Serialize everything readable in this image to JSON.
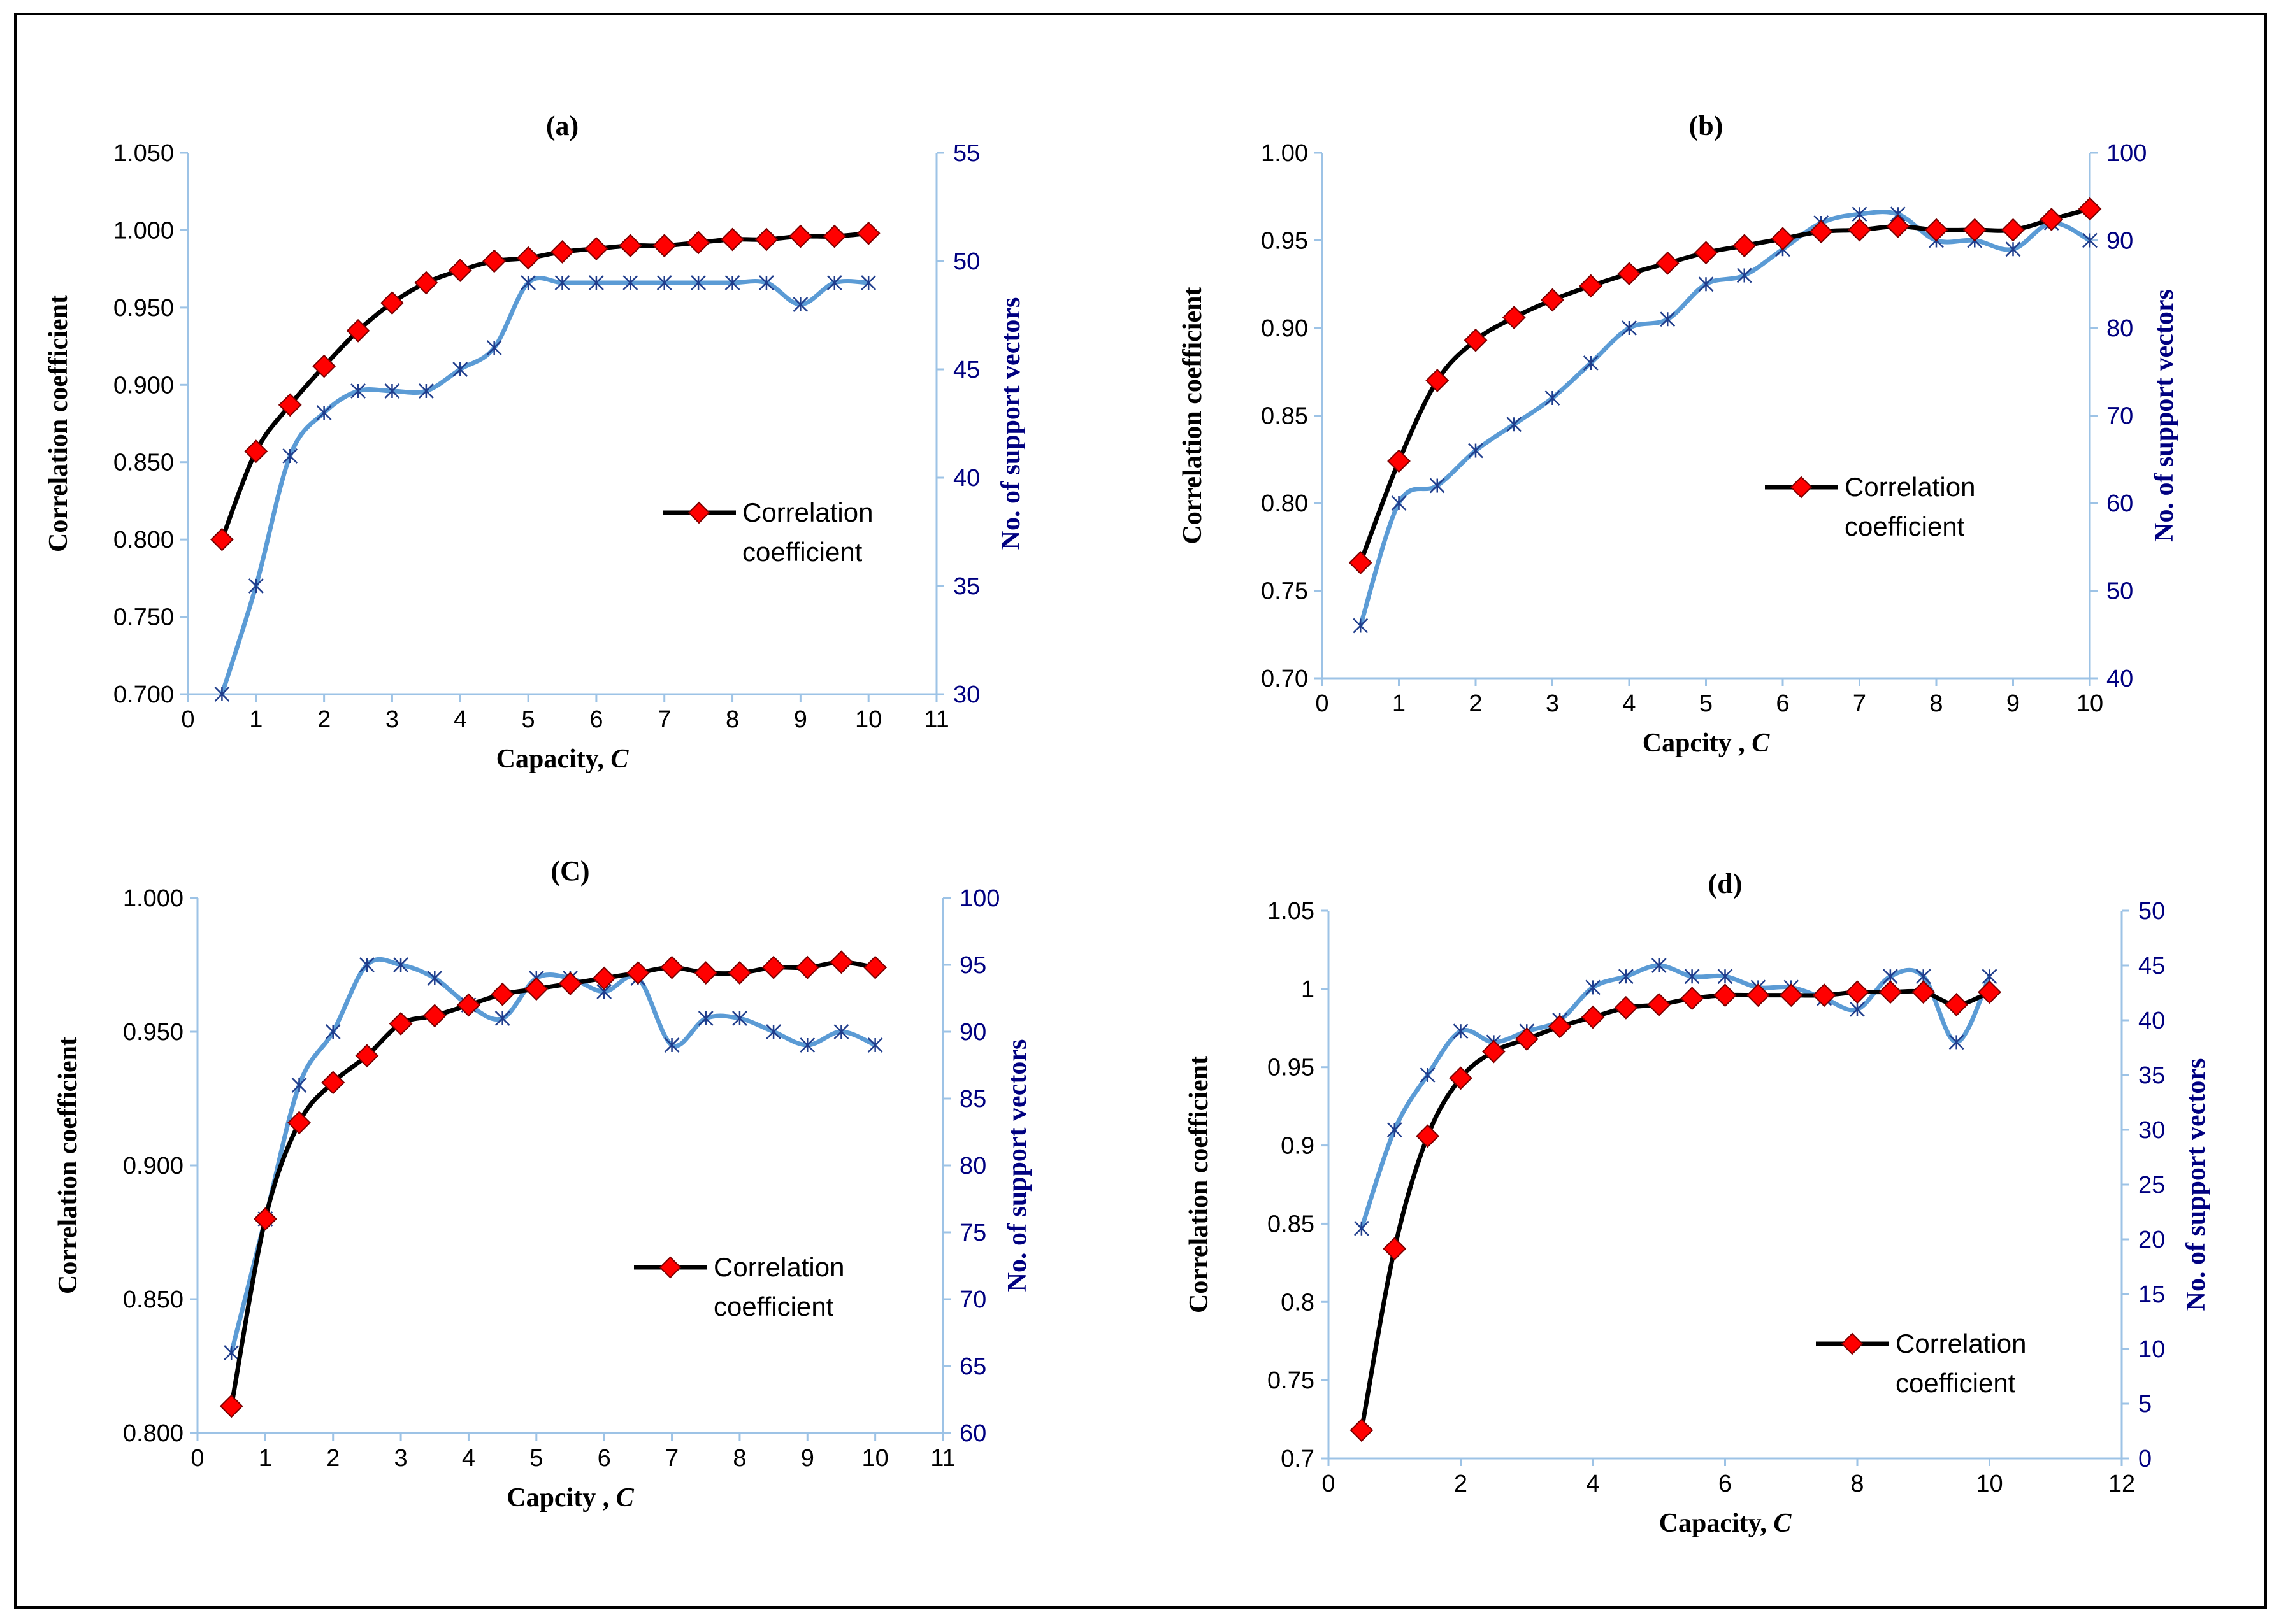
{
  "colors": {
    "primary_line": "#000000",
    "marker_fill": "#ff0000",
    "secondary_line": "#5b9bd5",
    "secondary_axis": "#000080"
  },
  "chart_data": [
    {
      "type": "line",
      "title": "(a)",
      "xlabel": "Capacity, C",
      "ylabel": "Correlation coefficient",
      "y2label": "No. of support  vectors",
      "xlim": [
        0,
        11
      ],
      "xticks": [
        0,
        1,
        2,
        3,
        4,
        5,
        6,
        7,
        8,
        9,
        10,
        11
      ],
      "ylim": [
        0.7,
        1.05
      ],
      "yticks": [
        "0.700",
        "0.750",
        "0.800",
        "0.850",
        "0.900",
        "0.950",
        "1.000",
        "1.050"
      ],
      "y2lim": [
        30,
        55
      ],
      "y2ticks": [
        "30",
        "35",
        "40",
        "45",
        "50",
        "55"
      ],
      "legend": "Correlation coefficient",
      "legend_position": "center-right",
      "x": [
        0.5,
        1,
        1.5,
        2,
        2.5,
        3,
        3.5,
        4,
        4.5,
        5,
        5.5,
        6,
        6.5,
        7,
        7.5,
        8,
        8.5,
        9,
        9.5,
        10
      ],
      "series": [
        {
          "name": "Correlation coefficient",
          "axis": "left",
          "values": [
            0.8,
            0.857,
            0.887,
            0.912,
            0.935,
            0.953,
            0.966,
            0.974,
            0.98,
            0.982,
            0.986,
            0.988,
            0.99,
            0.99,
            0.992,
            0.994,
            0.994,
            0.996,
            0.996,
            0.998
          ]
        },
        {
          "name": "No. of support vectors",
          "axis": "right",
          "values": [
            30,
            35,
            41,
            43,
            44,
            44,
            44,
            45,
            46,
            49,
            49,
            49,
            49,
            49,
            49,
            49,
            49,
            48,
            49,
            49
          ]
        }
      ]
    },
    {
      "type": "line",
      "title": "(b)",
      "xlabel": "Capcity , C",
      "ylabel": "Correlation coefficient",
      "y2label": "No. of support  vectors",
      "xlim": [
        0,
        10
      ],
      "xticks": [
        0,
        1,
        2,
        3,
        4,
        5,
        6,
        7,
        8,
        9,
        10
      ],
      "ylim": [
        0.7,
        1.0
      ],
      "yticks": [
        "0.70",
        "0.75",
        "0.80",
        "0.85",
        "0.90",
        "0.95",
        "1.00"
      ],
      "y2lim": [
        40,
        100
      ],
      "y2ticks": [
        "40",
        "50",
        "60",
        "70",
        "80",
        "90",
        "100"
      ],
      "legend": "Correlation coefficient",
      "legend_position": "center-right",
      "x": [
        0.5,
        1,
        1.5,
        2,
        2.5,
        3,
        3.5,
        4,
        4.5,
        5,
        5.5,
        6,
        6.5,
        7,
        7.5,
        8,
        8.5,
        9,
        9.5,
        10
      ],
      "series": [
        {
          "name": "Correlation coefficient",
          "axis": "left",
          "values": [
            0.766,
            0.824,
            0.87,
            0.893,
            0.906,
            0.916,
            0.924,
            0.931,
            0.937,
            0.943,
            0.947,
            0.951,
            0.955,
            0.956,
            0.958,
            0.956,
            0.956,
            0.956,
            0.962,
            0.968
          ]
        },
        {
          "name": "No. of support vectors",
          "axis": "right",
          "values": [
            46,
            60,
            62,
            66,
            69,
            72,
            76,
            80,
            81,
            85,
            86,
            89,
            92,
            93,
            93,
            90,
            90,
            89,
            92,
            90
          ]
        }
      ]
    },
    {
      "type": "line",
      "title": "(C)",
      "xlabel": "Capcity , C",
      "ylabel": "Correlation coefficient",
      "y2label": "No. of support  vectors",
      "xlim": [
        0,
        11
      ],
      "xticks": [
        0,
        1,
        2,
        3,
        4,
        5,
        6,
        7,
        8,
        9,
        10,
        11
      ],
      "ylim": [
        0.8,
        1.0
      ],
      "yticks": [
        "0.800",
        "0.850",
        "0.900",
        "0.950",
        "1.000"
      ],
      "y2lim": [
        60,
        100
      ],
      "y2ticks": [
        "60",
        "65",
        "70",
        "75",
        "80",
        "85",
        "90",
        "95",
        "100"
      ],
      "legend": "Correlation coefficient",
      "legend_position": "center-right",
      "x": [
        0.5,
        1,
        1.5,
        2,
        2.5,
        3,
        3.5,
        4,
        4.5,
        5,
        5.5,
        6,
        6.5,
        7,
        7.5,
        8,
        8.5,
        9,
        9.5,
        10
      ],
      "series": [
        {
          "name": "Correlation coefficient",
          "axis": "left",
          "values": [
            0.81,
            0.88,
            0.916,
            0.931,
            0.941,
            0.953,
            0.956,
            0.96,
            0.964,
            0.966,
            0.968,
            0.97,
            0.972,
            0.974,
            0.972,
            0.972,
            0.974,
            0.974,
            0.976,
            0.974
          ]
        },
        {
          "name": "No. of support vectors",
          "axis": "right",
          "values": [
            66,
            76,
            86,
            90,
            95,
            95,
            94,
            92,
            91,
            94,
            94,
            93,
            94,
            89,
            91,
            91,
            90,
            89,
            90,
            89
          ]
        }
      ]
    },
    {
      "type": "line",
      "title": "(d)",
      "xlabel": "Capacity, C",
      "ylabel": "Correlation coefficient",
      "y2label": "No. of support  vectors",
      "xlim": [
        0,
        12
      ],
      "xticks": [
        0,
        2,
        4,
        6,
        8,
        10,
        12
      ],
      "ylim": [
        0.7,
        1.05
      ],
      "yticks": [
        "0.7",
        "0.75",
        "0.8",
        "0.85",
        "0.9",
        "0.95",
        "1",
        "1.05"
      ],
      "y2lim": [
        0,
        50
      ],
      "y2ticks": [
        "0",
        "5",
        "10",
        "15",
        "20",
        "25",
        "30",
        "35",
        "40",
        "45",
        "50"
      ],
      "legend": "Correlation coefficient",
      "legend_position": "bottom-right",
      "x": [
        0.5,
        1,
        1.5,
        2,
        2.5,
        3,
        3.5,
        4,
        4.5,
        5,
        5.5,
        6,
        6.5,
        7,
        7.5,
        8,
        8.5,
        9,
        9.5,
        10
      ],
      "series": [
        {
          "name": "Correlation coefficient",
          "axis": "left",
          "values": [
            0.718,
            0.834,
            0.906,
            0.943,
            0.96,
            0.968,
            0.976,
            0.982,
            0.988,
            0.99,
            0.994,
            0.996,
            0.996,
            0.996,
            0.996,
            0.998,
            0.998,
            0.998,
            0.99,
            0.998
          ]
        },
        {
          "name": "No. of support vectors",
          "axis": "right",
          "values": [
            21,
            30,
            35,
            39,
            38,
            39,
            40,
            43,
            44,
            45,
            44,
            44,
            43,
            43,
            42,
            41,
            44,
            44,
            38,
            44
          ]
        }
      ]
    }
  ]
}
